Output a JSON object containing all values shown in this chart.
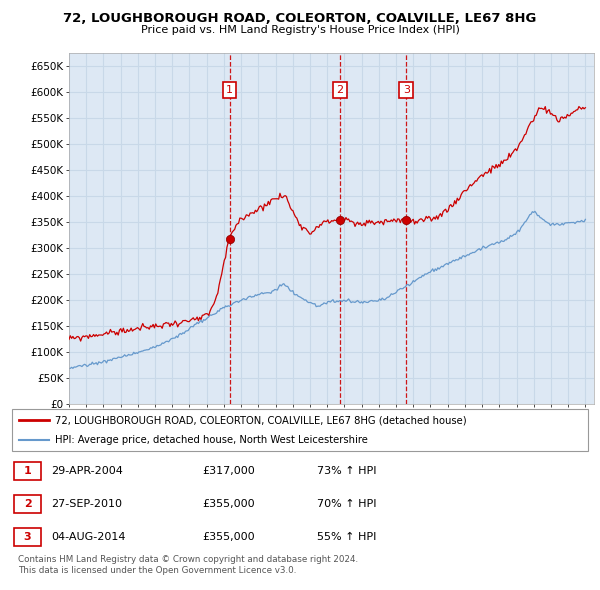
{
  "title": "72, LOUGHBOROUGH ROAD, COLEORTON, COALVILLE, LE67 8HG",
  "subtitle": "Price paid vs. HM Land Registry's House Price Index (HPI)",
  "xlim_start": 1995.0,
  "xlim_end": 2025.5,
  "ylim_min": 0,
  "ylim_max": 675000,
  "yticks": [
    0,
    50000,
    100000,
    150000,
    200000,
    250000,
    300000,
    350000,
    400000,
    450000,
    500000,
    550000,
    600000,
    650000
  ],
  "ytick_labels": [
    "£0",
    "£50K",
    "£100K",
    "£150K",
    "£200K",
    "£250K",
    "£300K",
    "£350K",
    "£400K",
    "£450K",
    "£500K",
    "£550K",
    "£600K",
    "£650K"
  ],
  "sale_dates": [
    2004.33,
    2010.74,
    2014.59
  ],
  "sale_prices": [
    317000,
    355000,
    355000
  ],
  "sale_labels": [
    "1",
    "2",
    "3"
  ],
  "property_line_color": "#cc0000",
  "hpi_line_color": "#6699cc",
  "vline_color": "#cc0000",
  "grid_color": "#c8d8e8",
  "bg_color": "#dde8f4",
  "legend_entries": [
    "72, LOUGHBOROUGH ROAD, COLEORTON, COALVILLE, LE67 8HG (detached house)",
    "HPI: Average price, detached house, North West Leicestershire"
  ],
  "table_rows": [
    [
      "1",
      "29-APR-2004",
      "£317,000",
      "73% ↑ HPI"
    ],
    [
      "2",
      "27-SEP-2010",
      "£355,000",
      "70% ↑ HPI"
    ],
    [
      "3",
      "04-AUG-2014",
      "£355,000",
      "55% ↑ HPI"
    ]
  ],
  "footer": "Contains HM Land Registry data © Crown copyright and database right 2024.\nThis data is licensed under the Open Government Licence v3.0.",
  "prop_series_x": [
    1995.0,
    1996.0,
    1997.0,
    1998.0,
    1999.0,
    2000.0,
    2001.0,
    2002.0,
    2003.0,
    2003.5,
    2004.0,
    2004.33,
    2005.0,
    2006.0,
    2007.0,
    2007.5,
    2008.0,
    2008.5,
    2009.0,
    2009.5,
    2010.0,
    2010.74,
    2011.0,
    2011.5,
    2012.0,
    2012.5,
    2013.0,
    2013.5,
    2014.0,
    2014.59,
    2015.0,
    2016.0,
    2017.0,
    2018.0,
    2019.0,
    2020.0,
    2021.0,
    2021.5,
    2022.0,
    2022.5,
    2023.0,
    2023.5,
    2024.0,
    2024.5,
    2025.0
  ],
  "prop_series_y": [
    125000,
    130000,
    135000,
    140000,
    145000,
    150000,
    155000,
    160000,
    170000,
    200000,
    270000,
    317000,
    355000,
    375000,
    395000,
    400000,
    370000,
    345000,
    330000,
    345000,
    350000,
    355000,
    355000,
    348000,
    345000,
    350000,
    350000,
    352000,
    354000,
    355000,
    350000,
    355000,
    375000,
    410000,
    440000,
    460000,
    490000,
    520000,
    550000,
    570000,
    560000,
    545000,
    555000,
    565000,
    570000
  ],
  "hpi_series_x": [
    1995.0,
    1996.0,
    1997.0,
    1998.0,
    1999.0,
    2000.0,
    2001.0,
    2002.0,
    2003.0,
    2004.0,
    2005.0,
    2006.0,
    2007.0,
    2007.5,
    2008.0,
    2008.5,
    2009.0,
    2009.5,
    2010.0,
    2010.5,
    2011.0,
    2011.5,
    2012.0,
    2012.5,
    2013.0,
    2013.5,
    2014.0,
    2014.5,
    2015.0,
    2016.0,
    2017.0,
    2018.0,
    2019.0,
    2020.0,
    2021.0,
    2021.5,
    2022.0,
    2022.5,
    2023.0,
    2023.5,
    2024.0,
    2024.5,
    2025.0
  ],
  "hpi_series_y": [
    70000,
    75000,
    82000,
    90000,
    100000,
    110000,
    125000,
    145000,
    165000,
    185000,
    200000,
    210000,
    220000,
    230000,
    215000,
    205000,
    195000,
    190000,
    195000,
    197000,
    198000,
    197000,
    196000,
    197000,
    200000,
    205000,
    215000,
    225000,
    235000,
    255000,
    270000,
    285000,
    300000,
    310000,
    330000,
    350000,
    370000,
    355000,
    345000,
    345000,
    348000,
    350000,
    355000
  ]
}
